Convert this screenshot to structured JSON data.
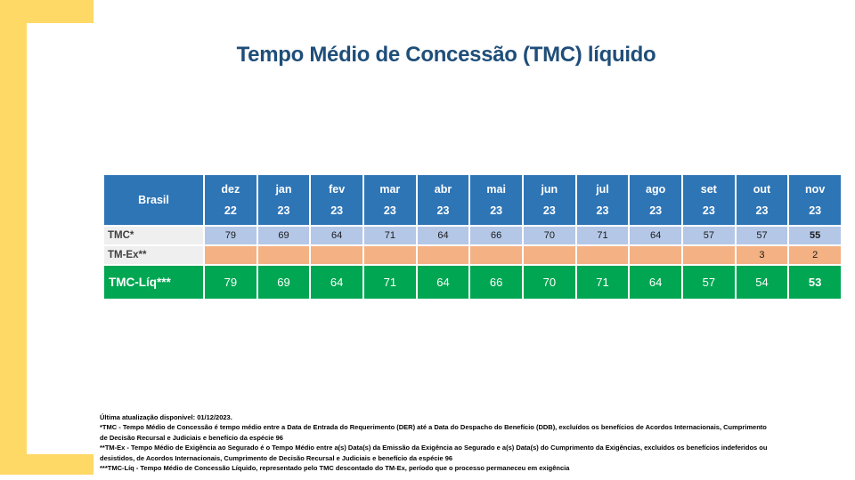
{
  "slide": {
    "title": "Tempo Médio de Concessão (TMC) líquido"
  },
  "colors": {
    "title_blue": "#1F4E79",
    "header_blue": "#2E75B6",
    "tmc_row_blue": "#B4C7E7",
    "tmex_row_orange": "#F4B183",
    "tmcliq_row_green": "#00A651",
    "label_gray": "#EFEFEF",
    "accent_yellow": "#FFD966"
  },
  "table": {
    "region_label": "Brasil",
    "columns": [
      {
        "month": "dez",
        "year": "22"
      },
      {
        "month": "jan",
        "year": "23"
      },
      {
        "month": "fev",
        "year": "23"
      },
      {
        "month": "mar",
        "year": "23"
      },
      {
        "month": "abr",
        "year": "23"
      },
      {
        "month": "mai",
        "year": "23"
      },
      {
        "month": "jun",
        "year": "23"
      },
      {
        "month": "jul",
        "year": "23"
      },
      {
        "month": "ago",
        "year": "23"
      },
      {
        "month": "set",
        "year": "23"
      },
      {
        "month": "out",
        "year": "23"
      },
      {
        "month": "nov",
        "year": "23"
      }
    ],
    "rows": [
      {
        "label": "TMC*",
        "values": [
          "79",
          "69",
          "64",
          "71",
          "64",
          "66",
          "70",
          "71",
          "64",
          "57",
          "57",
          "55"
        ]
      },
      {
        "label": "TM-Ex**",
        "values": [
          "",
          "",
          "",
          "",
          "",
          "",
          "",
          "",
          "",
          "",
          "3",
          "2"
        ]
      },
      {
        "label": "TMC-Líq***",
        "values": [
          "79",
          "69",
          "64",
          "71",
          "64",
          "66",
          "70",
          "71",
          "64",
          "57",
          "54",
          "53"
        ]
      }
    ]
  },
  "footnotes": {
    "lines": [
      "Última atualização disponível:  01/12/2023.",
      "*TMC - Tempo Médio de Concessão é tempo médio entre a Data de Entrada do Requerimento (DER) até a Data do Despacho do Benefício (DDB), excluídos os benefícios de Acordos Internacionais, Cumprimento",
      "de Decisão Recursal e Judiciais e benefício da espécie 96",
      "**TM-Ex - Tempo Médio de Exigência ao Segurado é o Tempo Médio entre a(s) Data(s) da Emissão da Exigência ao Segurado e a(s) Data(s) do Cumprimento da Exigências, excluídos os benefícios indeferidos ou",
      "desistidos, de Acordos Internacionais, Cumprimento de Decisão Recursal e Judiciais e benefício da espécie 96",
      "***TMC-Líq - Tempo Médio de Concessão Líquido, representado pelo TMC descontado do TM-Ex, período que o processo permaneceu em exigência"
    ]
  }
}
